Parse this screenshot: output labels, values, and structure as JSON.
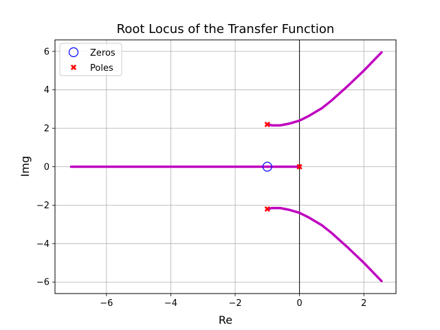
{
  "chart_data": {
    "type": "line",
    "title": "Root Locus of the Transfer Function",
    "xlabel": "Re",
    "ylabel": "Img",
    "xlim": [
      -7.6,
      3.0
    ],
    "ylim": [
      -6.6,
      6.6
    ],
    "xticks": [
      -6,
      -4,
      -2,
      0,
      2
    ],
    "yticks": [
      -6,
      -4,
      -2,
      0,
      2,
      4,
      6
    ],
    "xtick_labels": [
      "−6",
      "−4",
      "−2",
      "0",
      "2"
    ],
    "ytick_labels": [
      "−6",
      "−4",
      "−2",
      "0",
      "2",
      "4",
      "6"
    ],
    "grid": true,
    "legend_position": "top-left",
    "colors": {
      "locus": "#bf00bf",
      "zero": "#0000ff",
      "pole": "#ff0000",
      "grid": "#b0b0b0",
      "imag_axis": "#000000"
    },
    "legend": [
      {
        "label": "Zeros",
        "marker": "circle",
        "color": "#0000ff"
      },
      {
        "label": "Poles",
        "marker": "x",
        "color": "#ff0000"
      }
    ],
    "zeros": [
      {
        "x": -1,
        "y": 0
      }
    ],
    "poles": [
      {
        "x": 0,
        "y": 0
      },
      {
        "x": -1,
        "y": 2.2
      },
      {
        "x": -1,
        "y": -2.2
      }
    ],
    "series": [
      {
        "x": [
          -7.1,
          -6,
          -5,
          -4,
          -3,
          -2,
          -1.5,
          -1
        ],
        "y": [
          0,
          0,
          0,
          0,
          0,
          0,
          0,
          0
        ]
      },
      {
        "x": [
          -1,
          0
        ],
        "y": [
          0,
          0
        ]
      },
      {
        "x": [
          -1,
          -0.85,
          -0.6,
          -0.3,
          0,
          0.3,
          0.7,
          1.0,
          1.5,
          2.0,
          2.55
        ],
        "y": [
          2.2,
          2.15,
          2.15,
          2.25,
          2.4,
          2.65,
          3.05,
          3.45,
          4.2,
          5.0,
          5.95
        ]
      },
      {
        "x": [
          -1,
          -0.85,
          -0.6,
          -0.3,
          0,
          0.3,
          0.7,
          1.0,
          1.5,
          2.0,
          2.55
        ],
        "y": [
          -2.2,
          -2.15,
          -2.15,
          -2.25,
          -2.4,
          -2.65,
          -3.05,
          -3.45,
          -4.2,
          -5.0,
          -5.95
        ]
      }
    ]
  }
}
